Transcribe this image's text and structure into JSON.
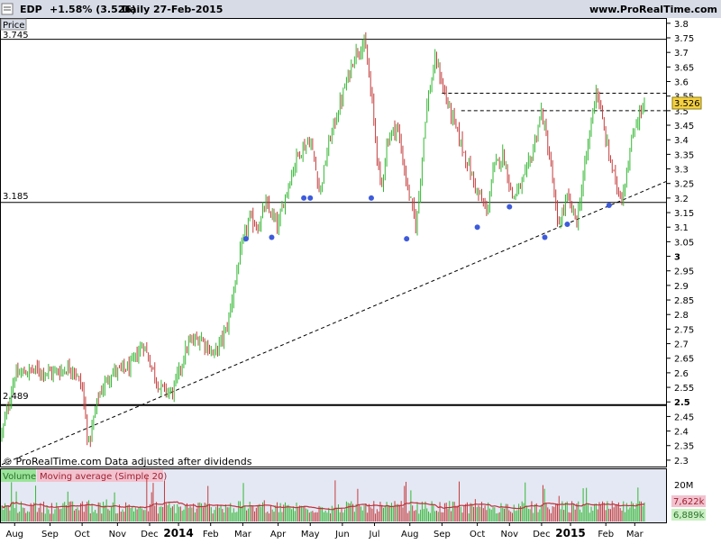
{
  "header": {
    "symbol": "EDP",
    "change": "+1.58% (3.526)",
    "period": "Daily",
    "date": "27-Feb-2015",
    "site": "www.ProRealTime.com"
  },
  "price_panel": {
    "label": "Price",
    "left_levels": [
      "3.745",
      "3.185",
      "2.489"
    ],
    "current_price_badge": "3.526",
    "watermark": "© ProRealTime.com  Data adjusted after dividends"
  },
  "volume_panel": {
    "label_volume": "Volume",
    "label_ma": "Moving average (Simple 20)",
    "scale_label": "20M",
    "volume_badge": "7,622k",
    "ma_badge": "6,889k"
  },
  "colors": {
    "up": "#33b833",
    "down": "#c43c3c",
    "background": "#ffffff",
    "grid_border": "#000000",
    "header_bg": "#d6dbe6",
    "volume_bg": "#e4e8f4",
    "marker": "#3d5bdc",
    "badge_price": "#f4d03f",
    "badge_volume": "#f2c2cf",
    "badge_ma": "#c9f0c2",
    "ma_line": "#c0303a"
  },
  "chart_data": {
    "type": "candlestick_bars",
    "title": "EDP",
    "period": "Daily",
    "y_axis_ticks": [
      "3.8",
      "3.75",
      "3.7",
      "3.65",
      "3.6",
      "3.55",
      "3.5",
      "3.45",
      "3.4",
      "3.35",
      "3.3",
      "3.25",
      "3.2",
      "3.15",
      "3.1",
      "3.05",
      "3",
      "2.95",
      "2.9",
      "2.85",
      "2.8",
      "2.75",
      "2.7",
      "2.65",
      "2.6",
      "2.55",
      "2.5",
      "2.45",
      "2.4",
      "2.35",
      "2.3"
    ],
    "ylim": [
      2.275,
      3.815
    ],
    "x_axis_labels": [
      "Aug",
      "Sep",
      "Oct",
      "Nov",
      "Dec",
      "2014",
      "Feb",
      "Mar",
      "Apr",
      "May",
      "Jun",
      "Jul",
      "Aug",
      "Sep",
      "Oct",
      "Nov",
      "Dec",
      "2015",
      "Feb",
      "Mar"
    ],
    "x_label_positions_frac": [
      0.02,
      0.075,
      0.125,
      0.18,
      0.23,
      0.275,
      0.325,
      0.375,
      0.43,
      0.48,
      0.53,
      0.58,
      0.635,
      0.685,
      0.74,
      0.79,
      0.84,
      0.885,
      0.94,
      0.985
    ],
    "price_path": [
      [
        0,
        2.39
      ],
      [
        0.02,
        2.59
      ],
      [
        0.05,
        2.61
      ],
      [
        0.08,
        2.6
      ],
      [
        0.11,
        2.62
      ],
      [
        0.125,
        2.55
      ],
      [
        0.135,
        2.35
      ],
      [
        0.15,
        2.52
      ],
      [
        0.17,
        2.6
      ],
      [
        0.2,
        2.62
      ],
      [
        0.22,
        2.7
      ],
      [
        0.245,
        2.55
      ],
      [
        0.265,
        2.53
      ],
      [
        0.29,
        2.7
      ],
      [
        0.31,
        2.72
      ],
      [
        0.33,
        2.66
      ],
      [
        0.35,
        2.75
      ],
      [
        0.37,
        3.0
      ],
      [
        0.385,
        3.13
      ],
      [
        0.4,
        3.1
      ],
      [
        0.41,
        3.18
      ],
      [
        0.43,
        3.1
      ],
      [
        0.44,
        3.2
      ],
      [
        0.46,
        3.35
      ],
      [
        0.48,
        3.4
      ],
      [
        0.495,
        3.22
      ],
      [
        0.51,
        3.4
      ],
      [
        0.53,
        3.55
      ],
      [
        0.55,
        3.7
      ],
      [
        0.565,
        3.73
      ],
      [
        0.575,
        3.55
      ],
      [
        0.59,
        3.22
      ],
      [
        0.6,
        3.4
      ],
      [
        0.615,
        3.45
      ],
      [
        0.63,
        3.25
      ],
      [
        0.645,
        3.1
      ],
      [
        0.66,
        3.5
      ],
      [
        0.675,
        3.68
      ],
      [
        0.69,
        3.55
      ],
      [
        0.705,
        3.45
      ],
      [
        0.72,
        3.35
      ],
      [
        0.74,
        3.22
      ],
      [
        0.755,
        3.15
      ],
      [
        0.765,
        3.3
      ],
      [
        0.78,
        3.35
      ],
      [
        0.795,
        3.2
      ],
      [
        0.81,
        3.25
      ],
      [
        0.825,
        3.35
      ],
      [
        0.84,
        3.5
      ],
      [
        0.855,
        3.3
      ],
      [
        0.865,
        3.1
      ],
      [
        0.88,
        3.2
      ],
      [
        0.895,
        3.12
      ],
      [
        0.91,
        3.35
      ],
      [
        0.925,
        3.58
      ],
      [
        0.94,
        3.4
      ],
      [
        0.955,
        3.25
      ],
      [
        0.965,
        3.2
      ],
      [
        0.985,
        3.45
      ],
      [
        1.0,
        3.526
      ]
    ],
    "support_markers": [
      {
        "x": 0.38,
        "y": 3.06
      },
      {
        "x": 0.42,
        "y": 3.065
      },
      {
        "x": 0.47,
        "y": 3.2
      },
      {
        "x": 0.48,
        "y": 3.2
      },
      {
        "x": 0.575,
        "y": 3.2
      },
      {
        "x": 0.63,
        "y": 3.06
      },
      {
        "x": 0.74,
        "y": 3.1
      },
      {
        "x": 0.79,
        "y": 3.17
      },
      {
        "x": 0.845,
        "y": 3.065
      },
      {
        "x": 0.88,
        "y": 3.11
      },
      {
        "x": 0.945,
        "y": 3.175
      }
    ],
    "levels": [
      {
        "value": 3.745,
        "style": "solid"
      },
      {
        "value": 3.185,
        "style": "solid"
      },
      {
        "value": 2.489,
        "style": "solid-bold"
      },
      {
        "value": 3.56,
        "style": "dashed",
        "x_start": 0.685
      },
      {
        "value": 3.5,
        "style": "dashed",
        "x_start": 0.715
      }
    ],
    "trendline": {
      "style": "dashed",
      "start": {
        "x": 0.0,
        "y": 2.285
      },
      "end": {
        "x": 1.0,
        "y": 3.225
      }
    },
    "last_price": 3.526,
    "volume": {
      "ylim_label": "20M",
      "last_volume": "7,622k",
      "ma20": "6,889k"
    }
  }
}
